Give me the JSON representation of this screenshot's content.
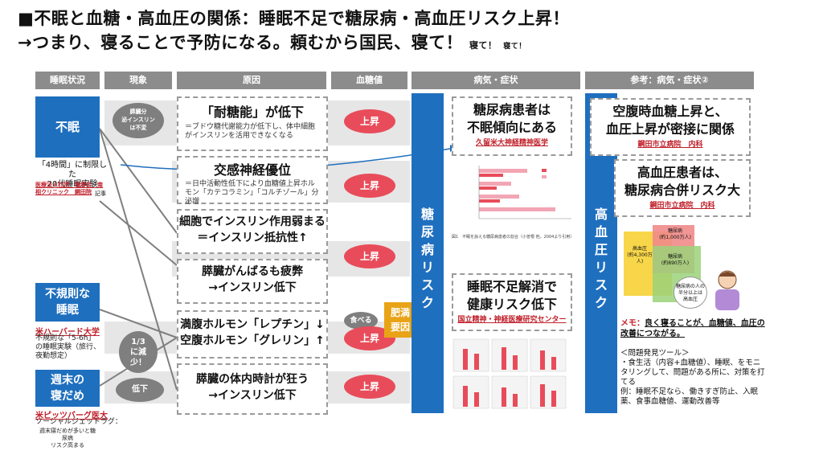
{
  "title": {
    "line1": "■不眠と血糖・高血圧の関係：睡眠不足で糖尿病・高血圧リスク上昇！",
    "line2": "→つまり、寝ることで予防になる。頼むから国民、寝て！",
    "line2_small1": "寝て！",
    "line2_small2": "寝て！"
  },
  "headers": [
    "睡眠状況",
    "現象",
    "原因",
    "血糖値",
    "病気・症状",
    "参考：病気・症状②"
  ],
  "sleep": {
    "insomnia": "不眠",
    "experiment_main": "「4時間」に制限した\n20代睡眠実験",
    "experiment_src": "医療法人社団　報春会　南相クリニック　鋼田院",
    "experiment_tag": "記事",
    "irregular": "不規則な\n睡眠",
    "harvard": "米ハーバード大学",
    "harvard_note": "不規則な「5-6h」\nの睡眠実験（旅行、\n夜勤想定）",
    "weekend": "週末の\n寝だめ",
    "pitts": "米ピッツバーグ医大",
    "jetlag": "ソーシャルジェットラグ：",
    "jetlag_note": "週末寝だめが多いと糖尿病\nリスク高まる"
  },
  "phenomena": {
    "pancreas_oval": "膵臓分\n泌インスリン\nは不変",
    "reduce_oval": "1/3\nに減\n少！",
    "decrease_oval": "低下",
    "eat_oval": "食べる"
  },
  "causes": [
    {
      "big": "「耐糖能」が低下",
      "small": "＝ブドウ糖代謝能力が低下し、体中細胞がインスリンを活用できなくなる"
    },
    {
      "big": "交感神経優位",
      "small": "＝日中活動性低下により血糖値上昇ホルモン「カテコラミン」「コルチゾール」分泌増"
    },
    {
      "big": "細胞でインスリン作用弱まる\n＝インスリン抵抗性↑",
      "small": ""
    },
    {
      "big": "膵臓がんばるも疲弊\n→インスリン低下",
      "small": ""
    },
    {
      "big": "満腹ホルモン「レプチン」↓\n空腹ホルモン「グレリン」↑",
      "small": ""
    },
    {
      "big": "膵臓の体内時計が狂う\n→インスリン低下",
      "small": ""
    }
  ],
  "glucose_label": "上昇",
  "obesity": "肥満\n要因",
  "diabetes_risk": "糖尿病リスク",
  "hypertension_risk": "高血圧リスク",
  "disease": {
    "box1": "糖尿病患者は\n不眠傾向にある",
    "box1_src": "久留米大神経精神医学",
    "box2": "睡眠不足解消で\n健康リスク低下",
    "box2_src": "国立精神・神経医療研究センター",
    "chart_caption": "図1　不眠を訴える糖尿病患者の割合（小曽根 他，2004より引用）"
  },
  "reference": {
    "box1": "空腹時血糖上昇と、\n血圧上昇が密接に関係",
    "box1_src": "鋼田市立病院　内科",
    "box2": "高血圧患者は、\n糖尿病合併リスク大",
    "box2_src": "鋼田市立病院　内科",
    "venn_left": "高血圧\n(約4,300万人)",
    "venn_top": "糖尿病\n(約1,000万人)",
    "venn_bottom": "糖尿病\n(約890万人)",
    "speech": "糖尿病の人の\n半分以上は\n高血圧",
    "memo_head": "メモ：",
    "memo": "良く寝ることが、血糖値、血圧の改善につながる。",
    "tools_title": "＜問題発見ツール＞",
    "tools_body": "・食生活（内容+血糖値）、睡眠、をモニタリングして、問題がある所に、対策を打てる",
    "tools_example": "例：睡眠不足なら、働きすぎ防止、入眠薬、食事血糖値、運動改善等"
  },
  "colors": {
    "accent_blue": "#1f6fbf",
    "header_gray": "#8c8c8c",
    "pill_red": "#e84c5a",
    "obesity_orange": "#e8a317",
    "source_red": "#c0202a"
  }
}
